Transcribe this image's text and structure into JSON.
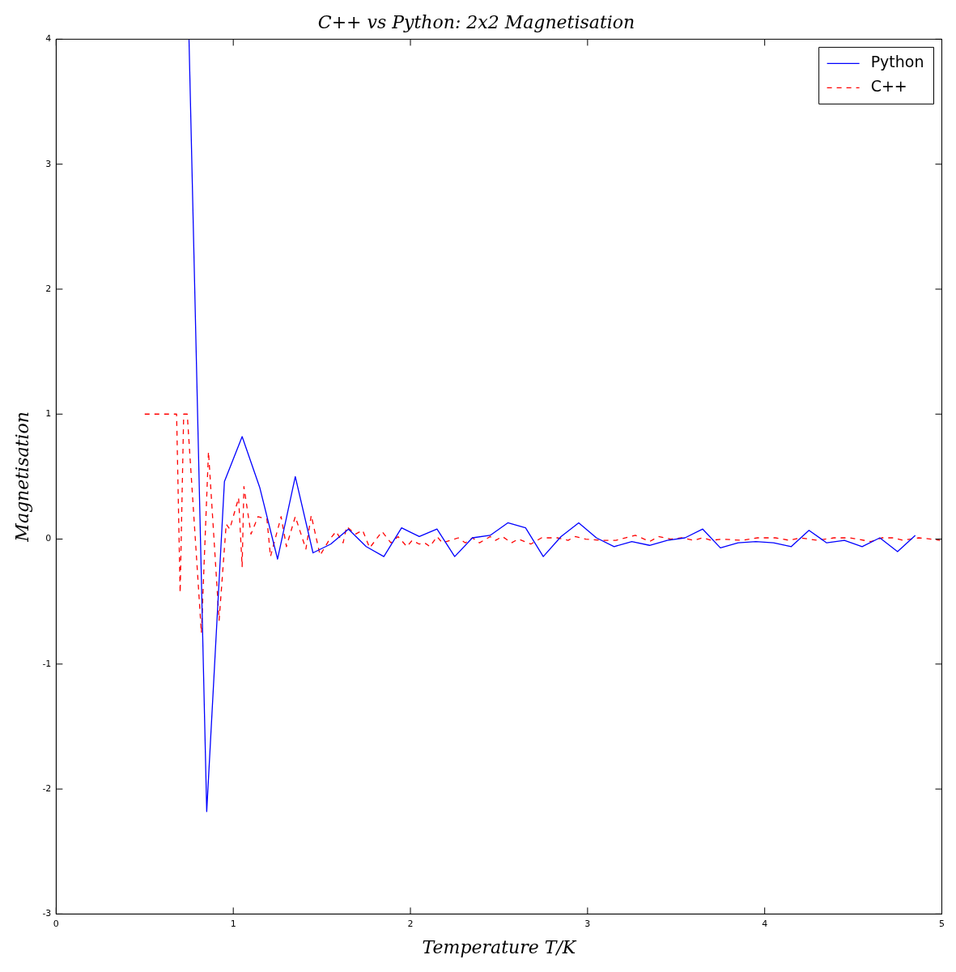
{
  "chart_data": {
    "type": "line",
    "title": "C++ vs Python: 2x2 Magnetisation",
    "xlabel": "Temperature T/K",
    "ylabel": "Magnetisation",
    "xlim": [
      0,
      5
    ],
    "ylim": [
      -3,
      4
    ],
    "xticks": [
      0,
      1,
      2,
      3,
      4,
      5
    ],
    "yticks": [
      -3,
      -2,
      -1,
      0,
      1,
      2,
      3,
      4
    ],
    "grid": false,
    "legend": "top right",
    "marker": "none",
    "series": [
      {
        "name": "Python",
        "color": "#0000ff",
        "line_style": "solid",
        "x": [
          0.75,
          0.85,
          0.95,
          1.05,
          1.15,
          1.25,
          1.35,
          1.45,
          1.55,
          1.65,
          1.75,
          1.85,
          1.95,
          2.05,
          2.15,
          2.25,
          2.35,
          2.45,
          2.55,
          2.65,
          2.75,
          2.85,
          2.95,
          3.05,
          3.15,
          3.25,
          3.35,
          3.45,
          3.55,
          3.65,
          3.75,
          3.85,
          3.95,
          4.05,
          4.15,
          4.25,
          4.35,
          4.45,
          4.55,
          4.65,
          4.75,
          4.85
        ],
        "values": [
          4,
          -2.18,
          0.46,
          0.82,
          0.41,
          -0.16,
          0.5,
          -0.11,
          -0.04,
          0.08,
          -0.06,
          -0.14,
          0.09,
          0.02,
          0.08,
          -0.14,
          0.01,
          0.03,
          0.13,
          0.09,
          -0.14,
          0.02,
          0.13,
          0.01,
          -0.06,
          -0.02,
          -0.05,
          -0.01,
          0.01,
          0.08,
          -0.07,
          -0.03,
          -0.02,
          -0.03,
          -0.06,
          0.07,
          -0.03,
          -0.01,
          -0.06,
          0.01,
          -0.1,
          0.03
        ]
      },
      {
        "name": "C++",
        "color": "#ff0000",
        "line_style": "dashed",
        "x": [
          0.5,
          0.68,
          0.7,
          0.72,
          0.74,
          0.82,
          0.86,
          0.92,
          0.96,
          0.98,
          1.03,
          1.05,
          1.06,
          1.1,
          1.14,
          1.19,
          1.21,
          1.27,
          1.3,
          1.35,
          1.41,
          1.44,
          1.49,
          1.54,
          1.58,
          1.62,
          1.64,
          1.69,
          1.73,
          1.77,
          1.84,
          1.89,
          1.93,
          1.98,
          2.01,
          2.05,
          2.08,
          2.11,
          2.15,
          2.18,
          2.27,
          2.31,
          2.35,
          2.39,
          2.45,
          2.48,
          2.52,
          2.57,
          2.61,
          2.68,
          2.74,
          2.83,
          2.89,
          2.93,
          2.99,
          3.07,
          3.16,
          3.27,
          3.32,
          3.35,
          3.4,
          3.47,
          3.53,
          3.6,
          3.65,
          3.7,
          3.76,
          3.87,
          3.96,
          4.06,
          4.14,
          4.2,
          4.3,
          4.39,
          4.48,
          4.6,
          4.66,
          4.73,
          4.78,
          4.87,
          4.94,
          4.99
        ],
        "values": [
          1,
          1,
          -0.43,
          1,
          1,
          -0.75,
          0.7,
          -0.65,
          0.12,
          0.08,
          0.33,
          -0.22,
          0.42,
          0.04,
          0.18,
          0.16,
          -0.14,
          0.18,
          -0.06,
          0.18,
          -0.08,
          0.19,
          -0.13,
          -0.01,
          0.06,
          -0.03,
          0.1,
          0.04,
          0.07,
          -0.07,
          0.06,
          -0.03,
          0.02,
          -0.06,
          -0.01,
          -0.04,
          -0.03,
          -0.06,
          0.02,
          -0.03,
          0.01,
          -0.03,
          0.01,
          -0.03,
          0.02,
          -0.01,
          0.02,
          -0.03,
          0,
          -0.04,
          0.01,
          0.01,
          -0.01,
          0.02,
          0,
          -0.01,
          -0.01,
          0.03,
          0,
          -0.02,
          0.02,
          0,
          0.01,
          -0.01,
          0.01,
          -0.01,
          0,
          -0.01,
          0.01,
          0.01,
          -0.01,
          0.01,
          -0.01,
          0.01,
          0.01,
          -0.02,
          0.01,
          0.01,
          -0.01,
          0.01,
          0,
          -0.01
        ]
      }
    ]
  }
}
